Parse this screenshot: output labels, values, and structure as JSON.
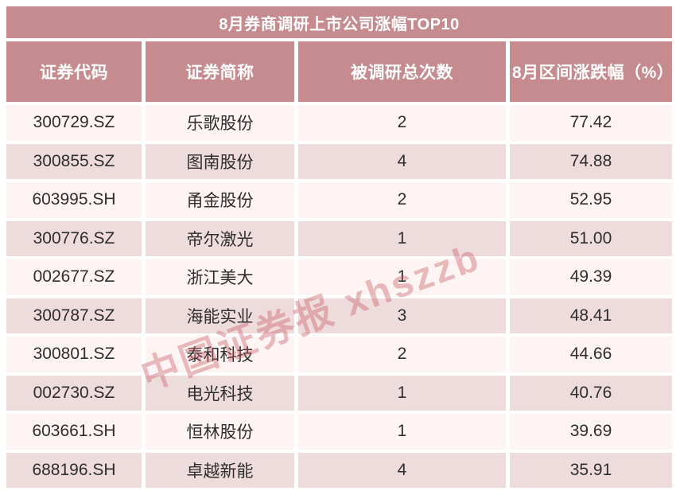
{
  "chart_data": {
    "type": "table",
    "title": "8月券商调研上市公司涨幅TOP10",
    "columns": [
      "证券代码",
      "证券简称",
      "被调研总次数",
      "8月区间涨跌幅（%）"
    ],
    "rows": [
      [
        "300729.SZ",
        "乐歌股份",
        "2",
        "77.42"
      ],
      [
        "300855.SZ",
        "图南股份",
        "4",
        "74.88"
      ],
      [
        "603995.SH",
        "甬金股份",
        "2",
        "52.95"
      ],
      [
        "300776.SZ",
        "帝尔激光",
        "1",
        "51.00"
      ],
      [
        "002677.SZ",
        "浙江美大",
        "1",
        "49.39"
      ],
      [
        "300787.SZ",
        "海能实业",
        "3",
        "48.41"
      ],
      [
        "300801.SZ",
        "泰和科技",
        "2",
        "44.66"
      ],
      [
        "002730.SZ",
        "电光科技",
        "1",
        "40.76"
      ],
      [
        "603661.SH",
        "恒林股份",
        "1",
        "39.69"
      ],
      [
        "688196.SH",
        "卓越新能",
        "4",
        "35.91"
      ]
    ]
  },
  "watermark": {
    "text": "中国证券报 xhszzb"
  },
  "colors": {
    "rose": "#c68b8e",
    "row-light": "#fdf4f3",
    "row-dark": "#eedbdc",
    "text-dark": "#2e2e2e",
    "header-text": "#ffffff",
    "watermark-color": "rgba(198,85,95,0.38)"
  }
}
